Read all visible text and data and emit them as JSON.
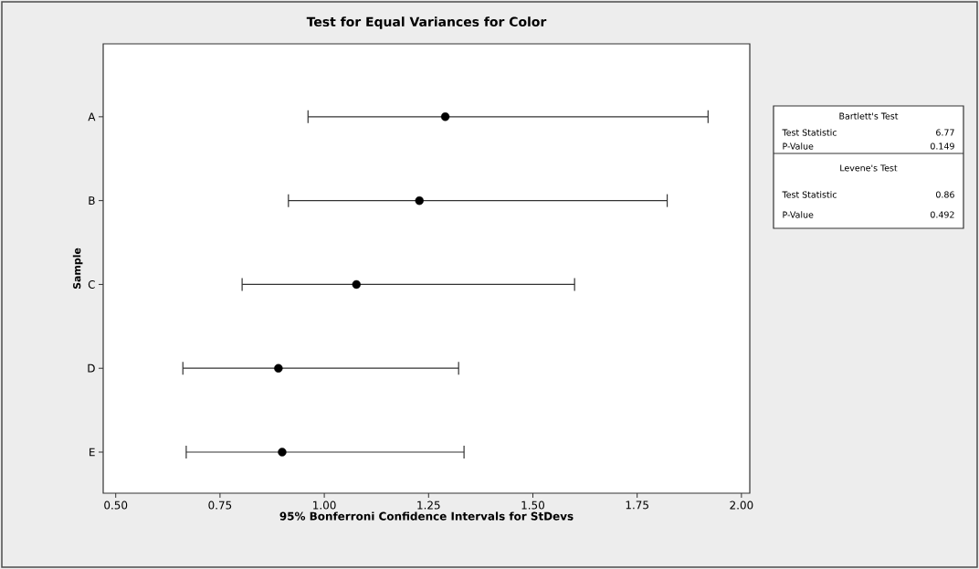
{
  "chart_data": {
    "type": "scatter",
    "orientation": "horizontal",
    "title": "Test for Equal Variances for Color",
    "xlabel": "95% Bonferroni Confidence Intervals for StDevs",
    "ylabel": "Sample",
    "categories": [
      "A",
      "B",
      "C",
      "D",
      "E"
    ],
    "values": [
      1.29,
      1.228,
      1.077,
      0.89,
      0.899
    ],
    "errors": [
      [
        0.961,
        1.92
      ],
      [
        0.914,
        1.822
      ],
      [
        0.803,
        1.6
      ],
      [
        0.661,
        1.322
      ],
      [
        0.669,
        1.335
      ]
    ],
    "color": "#000000",
    "marker": "circle",
    "xlim": [
      0.47,
      2.02
    ],
    "xticks": [
      {
        "value": 0.5,
        "label": "0.50"
      },
      {
        "value": 0.75,
        "label": "0.75"
      },
      {
        "value": 1.0,
        "label": "1.00"
      },
      {
        "value": 1.25,
        "label": "1.25"
      },
      {
        "value": 1.5,
        "label": "1.50"
      },
      {
        "value": 1.75,
        "label": "1.75"
      },
      {
        "value": 2.0,
        "label": "2.00"
      }
    ],
    "grid": false,
    "legend": false,
    "annotations": [
      "Bartlett's Test",
      "Test Statistic",
      "6.77",
      "P-Value",
      "0.149",
      "Levene's Test",
      "Test Statistic",
      "0.86",
      "P-Value",
      "0.492"
    ]
  }
}
